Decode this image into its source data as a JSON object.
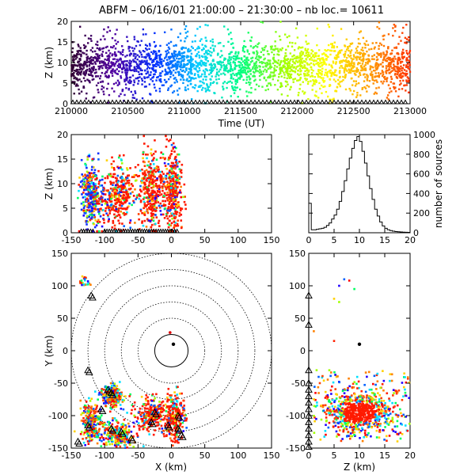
{
  "chart_data": [
    {
      "id": "time_height",
      "type": "scatter",
      "title": "ABFM – 06/16/01 21:00:00 – 21:30:00 – nb loc.=  10611",
      "xlabel": "Time (UT)",
      "ylabel": "Z (km)",
      "xlim": [
        210000,
        213000
      ],
      "ylim": [
        0,
        20
      ],
      "xticks": [
        "210000",
        "210500",
        "211000",
        "211500",
        "212000",
        "212500",
        "213000"
      ],
      "yticks": [
        "0",
        "5",
        "10",
        "15",
        "20"
      ],
      "color_by": "time",
      "colormap": [
        "#300030",
        "#5000a0",
        "#0030ff",
        "#00d0ff",
        "#00ff80",
        "#a0ff00",
        "#ffff00",
        "#ffa000",
        "#ff3000"
      ],
      "density_center_z": 9,
      "density_spread_z": 3,
      "station_markers_z": 0
    },
    {
      "id": "x_height",
      "type": "scatter",
      "xlabel": "",
      "ylabel": "Z (km)",
      "xlim": [
        -150,
        150
      ],
      "ylim": [
        0,
        20
      ],
      "xticks": [
        "-150",
        "-100",
        "-50",
        "0",
        "50",
        "100",
        "150"
      ],
      "yticks": [
        "0",
        "5",
        "10",
        "15",
        "20"
      ],
      "clusters": [
        {
          "x": -120,
          "z": 8,
          "sx": 8,
          "sz": 3,
          "dominant": "blue"
        },
        {
          "x": -80,
          "z": 7.5,
          "sx": 14,
          "sz": 3,
          "dominant": "red"
        },
        {
          "x": -30,
          "z": 9,
          "sx": 9,
          "sz": 4,
          "dominant": "red"
        },
        {
          "x": 2,
          "z": 9,
          "sx": 7,
          "sz": 4,
          "dominant": "red"
        }
      ]
    },
    {
      "id": "height_histogram",
      "type": "line",
      "xlabel": "",
      "ylabel": "number of sources",
      "xlim": [
        0,
        20
      ],
      "ylim": [
        0,
        1000
      ],
      "xticks": [
        "0",
        "5",
        "10",
        "15",
        "20"
      ],
      "yticks": [
        "0",
        "200",
        "400",
        "600",
        "800",
        "1000"
      ],
      "x": [
        0,
        0.5,
        1,
        1.5,
        2,
        2.5,
        3,
        3.5,
        4,
        4.5,
        5,
        5.5,
        6,
        6.5,
        7,
        7.5,
        8,
        8.5,
        9,
        9.5,
        10,
        10.5,
        11,
        11.5,
        12,
        12.5,
        13,
        13.5,
        14,
        14.5,
        15,
        15.5,
        16,
        16.5,
        17,
        17.5,
        18,
        18.5,
        19,
        19.5
      ],
      "values": [
        300,
        30,
        30,
        35,
        40,
        45,
        55,
        75,
        100,
        140,
        180,
        240,
        320,
        420,
        530,
        650,
        760,
        860,
        940,
        980,
        930,
        830,
        710,
        580,
        450,
        340,
        240,
        170,
        110,
        70,
        45,
        30,
        22,
        16,
        12,
        10,
        8,
        6,
        5,
        4
      ]
    },
    {
      "id": "plan_view",
      "type": "scatter",
      "xlabel": "X (km)",
      "ylabel": "Y (km)",
      "xlim": [
        -150,
        150
      ],
      "ylim": [
        -150,
        150
      ],
      "xticks": [
        "-150",
        "-100",
        "-50",
        "0",
        "50",
        "100",
        "150"
      ],
      "yticks": [
        "-150",
        "-100",
        "-50",
        "0",
        "50",
        "100",
        "150"
      ],
      "range_rings_km": [
        25,
        50,
        75,
        100,
        125,
        150
      ],
      "center": [
        0,
        0
      ],
      "black_dot": [
        3,
        10
      ],
      "clusters": [
        {
          "x": -90,
          "y": -70,
          "sx": 8,
          "sy": 8
        },
        {
          "x": -120,
          "y": -110,
          "sx": 8,
          "sy": 15
        },
        {
          "x": -80,
          "y": -130,
          "sx": 12,
          "sy": 10
        },
        {
          "x": -30,
          "y": -100,
          "sx": 12,
          "sy": 12
        },
        {
          "x": 5,
          "y": -100,
          "sx": 8,
          "sy": 18
        },
        {
          "x": -130,
          "y": 105,
          "sx": 4,
          "sy": 4
        }
      ],
      "stations": [
        [
          -120,
          85
        ],
        [
          -125,
          -30
        ],
        [
          -95,
          -60
        ],
        [
          -90,
          -65
        ],
        [
          -105,
          -90
        ],
        [
          -125,
          -115
        ],
        [
          -140,
          -140
        ],
        [
          -90,
          -120
        ],
        [
          -75,
          -125
        ],
        [
          -60,
          -135
        ],
        [
          -30,
          -110
        ],
        [
          -25,
          -95
        ],
        [
          -5,
          -115
        ],
        [
          10,
          -100
        ],
        [
          10,
          -120
        ],
        [
          15,
          -130
        ]
      ]
    },
    {
      "id": "height_y",
      "type": "scatter",
      "xlabel": "Z (km)",
      "ylabel": "",
      "xlim": [
        0,
        20
      ],
      "ylim": [
        -150,
        150
      ],
      "xticks": [
        "0",
        "5",
        "10",
        "15",
        "20"
      ],
      "yticks": [
        "-150",
        "-100",
        "-50",
        "0",
        "50",
        "100",
        "150"
      ],
      "black_dot": [
        10,
        10
      ],
      "main_cluster": {
        "z": 10,
        "y": -95,
        "sz": 3,
        "sy": 15
      }
    }
  ]
}
